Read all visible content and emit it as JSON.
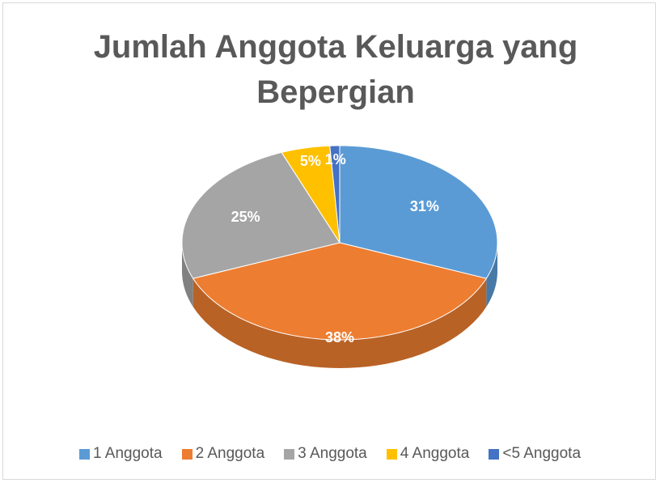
{
  "chart_data": {
    "type": "pie",
    "title": "Jumlah Anggota Keluarga yang Bepergian",
    "categories": [
      "1 Anggota",
      "2 Anggota",
      "3 Anggota",
      "4 Anggota",
      "<5 Anggota"
    ],
    "values": [
      31,
      38,
      25,
      5,
      1
    ],
    "value_labels": [
      "31%",
      "38%",
      "25%",
      "5%",
      "1%"
    ],
    "colors": [
      "#5b9bd5",
      "#ed7d31",
      "#a5a5a5",
      "#ffc000",
      "#4472c4"
    ],
    "legend": "bottom"
  }
}
